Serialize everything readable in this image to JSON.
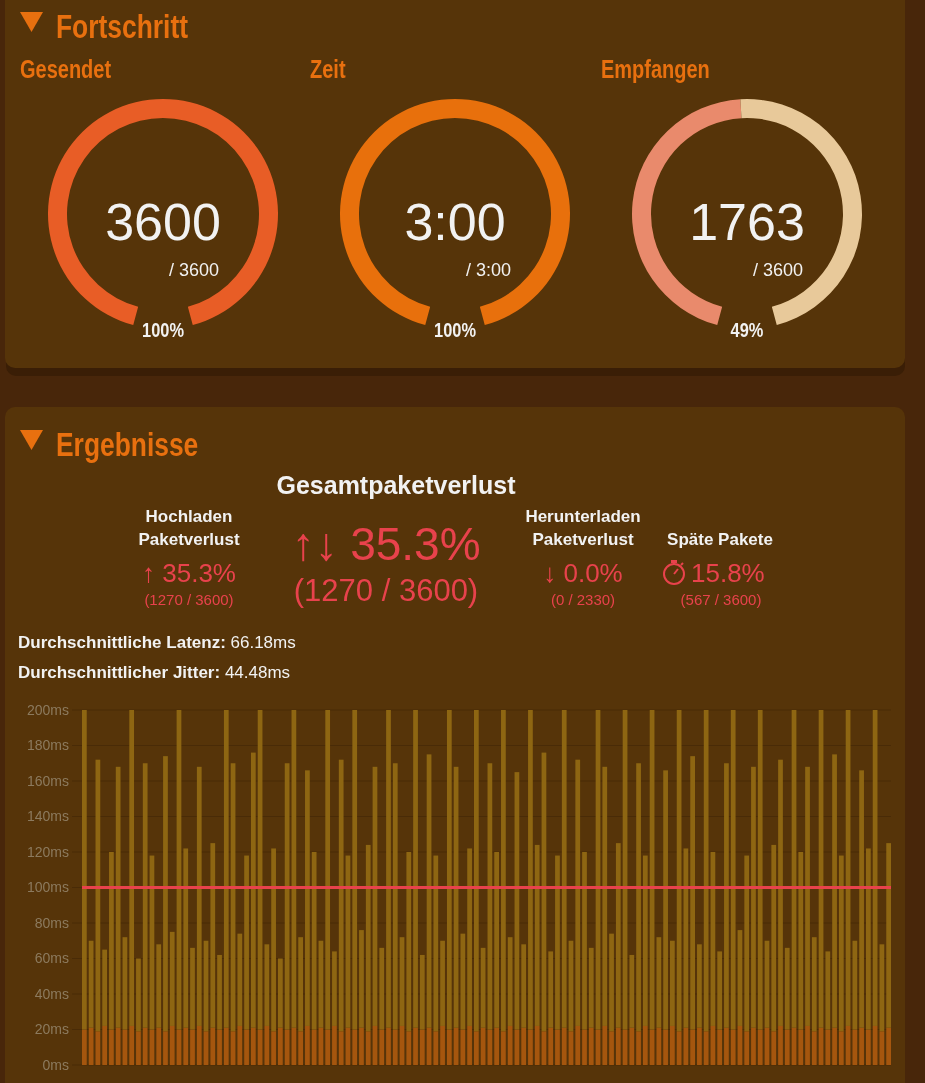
{
  "chart_data": [
    {
      "type": "other",
      "title": "Fortschritt"
    },
    {
      "type": "pie",
      "title": "Gesendet",
      "categories": [
        null
      ],
      "values": [
        100
      ],
      "colors": [
        "#e85d26"
      ],
      "annotations": [
        "3600",
        "/ 3600",
        "100%"
      ]
    },
    {
      "type": "pie",
      "title": "Zeit",
      "categories": [
        null
      ],
      "values": [
        100
      ],
      "colors": [
        "#e8700c"
      ],
      "annotations": [
        "3:00",
        "/ 3:00",
        "100%"
      ]
    },
    {
      "type": "donut",
      "title": "Empfangen",
      "categories": [
        null,
        null
      ],
      "values": [
        49,
        51
      ],
      "colors": [
        "#e98a6c",
        "#e8c99a"
      ],
      "annotations": [
        "1763",
        "/ 3600",
        "49%"
      ]
    },
    {
      "type": "other",
      "title": "Ergebnisse",
      "subtitle": "Gesamtpaketverlust",
      "annotations": [
        "Hochladen Paketverlust",
        "↑ 35.3%",
        "(1270 / 3600)",
        "↑↓ 35.3%",
        "(1270 / 3600)",
        "Herunterladen Paketverlust",
        "↓ 0.0%",
        "(0 / 2330)",
        "Späte Pakete",
        "15.8%",
        "(567 / 3600)",
        "Durchschnittliche Latenz: 66.18ms",
        "Durchschnittlicher Jitter: 44.48ms"
      ]
    },
    {
      "type": "bar",
      "stacked": true,
      "tick_labels": "y",
      "grid": "y",
      "categories": [
        null,
        null,
        null,
        null,
        null,
        null,
        null,
        null,
        null,
        null,
        null,
        null,
        null,
        null,
        null,
        null,
        null,
        null,
        null,
        null,
        null,
        null,
        null,
        null,
        null,
        null,
        null,
        null,
        null,
        null,
        null,
        null,
        null,
        null,
        null,
        null,
        null,
        null,
        null,
        null,
        null,
        null,
        null,
        null,
        null,
        null,
        null,
        null,
        null,
        null,
        null,
        null,
        null,
        null,
        null,
        null,
        null,
        null,
        null,
        null,
        null,
        null,
        null,
        null,
        null,
        null,
        null,
        null,
        null,
        null,
        null,
        null,
        null,
        null,
        null,
        null,
        null,
        null,
        null,
        null,
        null,
        null,
        null,
        null,
        null,
        null,
        null,
        null,
        null,
        null,
        null,
        null,
        null,
        null,
        null,
        null,
        null,
        null,
        null,
        null,
        null,
        null,
        null,
        null,
        null,
        null,
        null,
        null,
        null,
        null,
        null,
        null,
        null,
        null,
        null,
        null,
        null,
        null,
        null,
        null
      ],
      "series": [
        {
          "color": "#a5560e",
          "values": [
            20,
            21,
            19,
            22,
            20,
            21,
            20,
            22,
            19,
            21,
            20,
            21,
            19,
            22,
            20,
            21,
            20,
            22,
            19,
            21,
            20,
            21,
            19,
            22,
            20,
            21,
            20,
            22,
            19,
            21,
            20,
            21,
            19,
            22,
            20,
            21,
            20,
            22,
            19,
            21,
            20,
            21,
            19,
            22,
            20,
            21,
            20,
            22,
            19,
            21,
            20,
            21,
            19,
            22,
            20,
            21,
            20,
            22,
            19,
            21,
            20,
            21,
            19,
            22,
            20,
            21,
            20,
            22,
            19,
            21,
            20,
            21,
            19,
            22,
            20,
            21,
            20,
            22,
            19,
            21,
            20,
            21,
            19,
            22,
            20,
            21,
            20,
            22,
            19,
            21,
            20,
            21,
            19,
            22,
            20,
            21,
            20,
            22,
            19,
            21,
            20,
            21,
            19,
            22,
            20,
            21,
            20,
            22,
            19,
            21,
            20,
            21,
            19,
            22,
            20,
            21,
            20,
            22,
            19,
            21
          ]
        },
        {
          "color": "#8e6612",
          "values": [
            180,
            49,
            153,
            43,
            100,
            147,
            52,
            178,
            41,
            149,
            98,
            47,
            155,
            53,
            180,
            101,
            46,
            146,
            51,
            104,
            42,
            179,
            151,
            52,
            98,
            155,
            180,
            46,
            103,
            39,
            150,
            179,
            53,
            144,
            100,
            49,
            180,
            42,
            153,
            97,
            180,
            55,
            105,
            146,
            46,
            179,
            150,
            50,
            101,
            179,
            42,
            154,
            99,
            48,
            180,
            147,
            54,
            100,
            181,
            45,
            150,
            99,
            181,
            50,
            145,
            47,
            180,
            102,
            157,
            43,
            98,
            179,
            51,
            150,
            100,
            45,
            180,
            146,
            55,
            104,
            180,
            41,
            151,
            96,
            180,
            51,
            146,
            48,
            181,
            101,
            154,
            47,
            181,
            98,
            44,
            149,
            180,
            54,
            99,
            147,
            180,
            49,
            105,
            150,
            46,
            179,
            100,
            146,
            53,
            179,
            44,
            154,
            99,
            178,
            50,
            145,
            102,
            178,
            49,
            104
          ]
        }
      ],
      "ylim": [
        0,
        200
      ],
      "yticks": [
        {
          "value": 0,
          "label": "0ms"
        },
        {
          "value": 20,
          "label": "20ms"
        },
        {
          "value": 40,
          "label": "40ms"
        },
        {
          "value": 60,
          "label": "60ms"
        },
        {
          "value": 80,
          "label": "80ms"
        },
        {
          "value": 100,
          "label": "100ms"
        },
        {
          "value": 120,
          "label": "120ms"
        },
        {
          "value": 140,
          "label": "140ms"
        },
        {
          "value": 160,
          "label": "160ms"
        },
        {
          "value": 180,
          "label": "180ms"
        },
        {
          "value": 200,
          "label": "200ms"
        }
      ],
      "ref_lines": [
        {
          "axis": "y",
          "value": 100,
          "color": "#e8424c"
        }
      ]
    }
  ]
}
